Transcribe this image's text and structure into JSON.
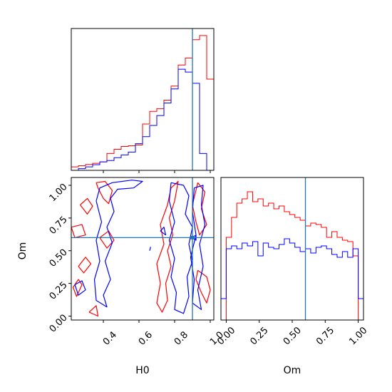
{
  "chart_data": {
    "type": "corner",
    "parameters": [
      "H0",
      "Om"
    ],
    "truth": {
      "H0": 0.9,
      "Om": 0.6
    },
    "colors": {
      "red": "#ff0000",
      "blue": "#0000ff",
      "truth": "#1f77b4"
    },
    "panels": [
      {
        "id": "h0-hist",
        "type": "histogram-step",
        "xlim": [
          0.22,
          1.02
        ],
        "bins": [
          0.22,
          0.26,
          0.3,
          0.34,
          0.38,
          0.42,
          0.46,
          0.5,
          0.54,
          0.58,
          0.62,
          0.66,
          0.7,
          0.74,
          0.78,
          0.82,
          0.86,
          0.9,
          0.94,
          0.98,
          1.02
        ],
        "series": [
          {
            "color": "red",
            "values": [
              0.025,
              0.033,
              0.042,
              0.05,
              0.06,
              0.12,
              0.15,
              0.17,
              0.175,
              0.18,
              0.33,
              0.42,
              0.44,
              0.5,
              0.6,
              0.75,
              0.8,
              0.93,
              0.96,
              0.65
            ]
          },
          {
            "color": "blue",
            "values": [
              0.0,
              0.012,
              0.025,
              0.04,
              0.06,
              0.07,
              0.09,
              0.11,
              0.13,
              0.19,
              0.24,
              0.32,
              0.39,
              0.48,
              0.58,
              0.72,
              0.7,
              0.62,
              0.12,
              0.0
            ]
          }
        ]
      },
      {
        "id": "om-h0-contour",
        "type": "contour",
        "xlim": [
          0.22,
          1.02
        ],
        "ylim": [
          -0.03,
          1.06
        ],
        "xticks": [
          0.4,
          0.6,
          0.8,
          1.0
        ],
        "yticks": [
          0.0,
          0.25,
          0.5,
          0.75,
          1.0
        ],
        "xtick_labels": [
          "0.4",
          "0.6",
          "0.8",
          "1.0"
        ],
        "ytick_labels": [
          "0.00",
          "0.25",
          "0.50",
          "0.75",
          "1.00"
        ],
        "xlabel": "H0",
        "ylabel": "Om",
        "contours": [
          {
            "color": "red",
            "points": [
              [
                0.23,
                0.22
              ],
              [
                0.26,
                0.28
              ],
              [
                0.28,
                0.24
              ],
              [
                0.25,
                0.15
              ],
              [
                0.23,
                0.22
              ]
            ]
          },
          {
            "color": "red",
            "points": [
              [
                0.27,
                0.85
              ],
              [
                0.31,
                0.9
              ],
              [
                0.34,
                0.84
              ],
              [
                0.31,
                0.78
              ],
              [
                0.27,
                0.85
              ]
            ]
          },
          {
            "color": "red",
            "points": [
              [
                0.26,
                0.38
              ],
              [
                0.3,
                0.45
              ],
              [
                0.33,
                0.4
              ],
              [
                0.29,
                0.33
              ],
              [
                0.26,
                0.38
              ]
            ]
          },
          {
            "color": "red",
            "points": [
              [
                0.38,
                0.6
              ],
              [
                0.43,
                0.65
              ],
              [
                0.46,
                0.58
              ],
              [
                0.42,
                0.52
              ],
              [
                0.38,
                0.6
              ]
            ]
          },
          {
            "color": "red",
            "points": [
              [
                0.36,
                1.02
              ],
              [
                0.41,
                1.03
              ],
              [
                0.45,
                0.96
              ],
              [
                0.43,
                0.86
              ],
              [
                0.4,
                0.9
              ],
              [
                0.37,
                0.98
              ],
              [
                0.36,
                1.02
              ]
            ]
          },
          {
            "color": "red",
            "points": [
              [
                0.22,
                0.68
              ],
              [
                0.28,
                0.7
              ],
              [
                0.3,
                0.62
              ],
              [
                0.24,
                0.6
              ],
              [
                0.22,
                0.68
              ]
            ]
          },
          {
            "color": "red",
            "points": [
              [
                0.32,
                0.03
              ],
              [
                0.36,
                0.08
              ],
              [
                0.37,
                0.0
              ],
              [
                0.32,
                0.03
              ]
            ]
          },
          {
            "color": "red",
            "points": [
              [
                0.78,
                0.98
              ],
              [
                0.82,
                1.03
              ],
              [
                0.8,
                0.88
              ],
              [
                0.77,
                0.75
              ],
              [
                0.79,
                0.62
              ],
              [
                0.76,
                0.5
              ],
              [
                0.78,
                0.38
              ],
              [
                0.75,
                0.25
              ],
              [
                0.76,
                0.12
              ],
              [
                0.73,
                0.03
              ],
              [
                0.7,
                0.1
              ],
              [
                0.72,
                0.25
              ],
              [
                0.7,
                0.4
              ],
              [
                0.74,
                0.55
              ],
              [
                0.72,
                0.7
              ],
              [
                0.76,
                0.85
              ],
              [
                0.78,
                0.98
              ]
            ]
          },
          {
            "color": "red",
            "points": [
              [
                0.93,
                1.02
              ],
              [
                0.97,
                0.95
              ],
              [
                0.95,
                0.82
              ],
              [
                0.98,
                0.7
              ],
              [
                0.94,
                0.62
              ],
              [
                0.92,
                0.72
              ],
              [
                0.9,
                0.85
              ],
              [
                0.93,
                1.02
              ]
            ]
          },
          {
            "color": "red",
            "points": [
              [
                0.93,
                0.35
              ],
              [
                0.98,
                0.3
              ],
              [
                1.0,
                0.2
              ],
              [
                0.98,
                0.1
              ],
              [
                0.95,
                0.18
              ],
              [
                0.92,
                0.28
              ],
              [
                0.93,
                0.35
              ]
            ]
          },
          {
            "color": "blue",
            "points": [
              [
                0.24,
                0.24
              ],
              [
                0.28,
                0.27
              ],
              [
                0.3,
                0.2
              ],
              [
                0.26,
                0.16
              ],
              [
                0.24,
                0.24
              ]
            ]
          },
          {
            "color": "blue",
            "points": [
              [
                0.36,
                0.88
              ],
              [
                0.38,
                0.98
              ],
              [
                0.45,
                1.02
              ],
              [
                0.56,
                1.04
              ],
              [
                0.62,
                1.03
              ],
              [
                0.57,
                0.98
              ],
              [
                0.48,
                0.97
              ],
              [
                0.44,
                0.9
              ],
              [
                0.46,
                0.8
              ],
              [
                0.42,
                0.68
              ],
              [
                0.45,
                0.56
              ],
              [
                0.41,
                0.42
              ],
              [
                0.44,
                0.28
              ],
              [
                0.4,
                0.16
              ],
              [
                0.42,
                0.07
              ],
              [
                0.36,
                0.12
              ],
              [
                0.35,
                0.28
              ],
              [
                0.38,
                0.42
              ],
              [
                0.36,
                0.58
              ],
              [
                0.39,
                0.72
              ],
              [
                0.36,
                0.88
              ]
            ]
          },
          {
            "color": "blue",
            "points": [
              [
                0.78,
                1.02
              ],
              [
                0.85,
                1.0
              ],
              [
                0.88,
                0.92
              ],
              [
                0.86,
                0.78
              ],
              [
                0.9,
                0.68
              ],
              [
                0.88,
                0.55
              ],
              [
                0.9,
                0.42
              ],
              [
                0.87,
                0.3
              ],
              [
                0.88,
                0.15
              ],
              [
                0.85,
                0.02
              ],
              [
                0.8,
                0.05
              ],
              [
                0.81,
                0.18
              ],
              [
                0.78,
                0.3
              ],
              [
                0.8,
                0.44
              ],
              [
                0.77,
                0.58
              ],
              [
                0.8,
                0.72
              ],
              [
                0.77,
                0.88
              ],
              [
                0.78,
                1.02
              ]
            ]
          },
          {
            "color": "blue",
            "points": [
              [
                0.91,
                0.98
              ],
              [
                0.96,
                1.0
              ],
              [
                0.95,
                0.85
              ],
              [
                0.97,
                0.7
              ],
              [
                0.94,
                0.55
              ],
              [
                0.96,
                0.38
              ],
              [
                0.93,
                0.2
              ],
              [
                0.95,
                0.05
              ],
              [
                0.9,
                0.1
              ],
              [
                0.91,
                0.28
              ],
              [
                0.89,
                0.45
              ],
              [
                0.92,
                0.62
              ],
              [
                0.9,
                0.8
              ],
              [
                0.91,
                0.98
              ]
            ]
          },
          {
            "color": "blue",
            "points": [
              [
                0.72,
                0.65
              ],
              [
                0.74,
                0.68
              ],
              [
                0.75,
                0.62
              ],
              [
                0.72,
                0.65
              ]
            ]
          },
          {
            "color": "blue",
            "points": [
              [
                0.66,
                0.5
              ],
              [
                0.665,
                0.53
              ]
            ]
          },
          {
            "color": "blue",
            "points": [
              [
                0.9,
                0.6
              ],
              [
                0.92,
                0.62
              ],
              [
                0.92,
                0.58
              ],
              [
                0.9,
                0.6
              ]
            ]
          }
        ]
      },
      {
        "id": "om-hist",
        "type": "histogram-step",
        "xlim": [
          -0.04,
          1.04
        ],
        "xticks": [
          0.0,
          0.25,
          0.5,
          0.75,
          1.0
        ],
        "xtick_labels": [
          "0.00",
          "0.25",
          "0.50",
          "0.75",
          "1.00"
        ],
        "xlabel": "Om",
        "bins": [
          -0.04,
          0.0,
          0.04,
          0.08,
          0.12,
          0.16,
          0.2,
          0.24,
          0.28,
          0.32,
          0.36,
          0.4,
          0.44,
          0.48,
          0.52,
          0.56,
          0.6,
          0.64,
          0.68,
          0.72,
          0.76,
          0.8,
          0.84,
          0.88,
          0.92,
          0.96,
          1.0,
          1.04
        ],
        "series": [
          {
            "color": "red",
            "values": [
              0.0,
              0.58,
              0.72,
              0.82,
              0.85,
              0.9,
              0.83,
              0.85,
              0.8,
              0.82,
              0.78,
              0.8,
              0.76,
              0.74,
              0.72,
              0.7,
              0.66,
              0.68,
              0.67,
              0.65,
              0.58,
              0.62,
              0.58,
              0.56,
              0.55,
              0.45,
              0.0
            ]
          },
          {
            "color": "blue",
            "values": [
              0.15,
              0.5,
              0.52,
              0.5,
              0.54,
              0.52,
              0.55,
              0.45,
              0.54,
              0.51,
              0.5,
              0.53,
              0.57,
              0.54,
              0.51,
              0.48,
              0.5,
              0.47,
              0.51,
              0.52,
              0.5,
              0.46,
              0.44,
              0.48,
              0.44,
              0.5,
              0.15
            ]
          }
        ]
      }
    ]
  }
}
